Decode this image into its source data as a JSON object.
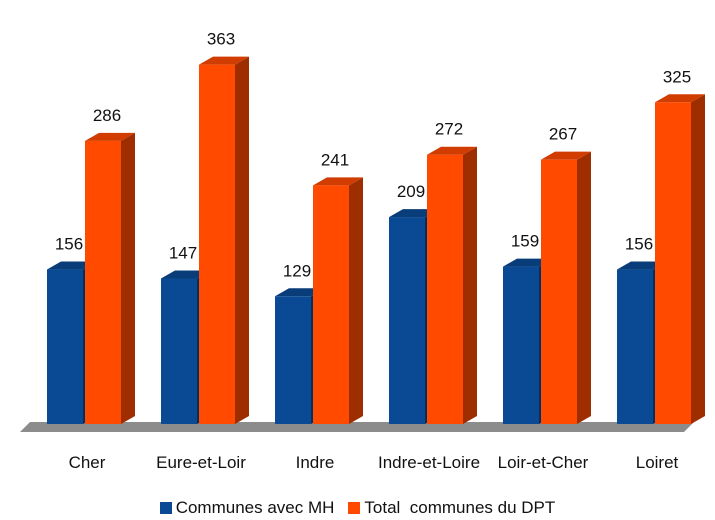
{
  "chart_data": {
    "type": "bar",
    "categories": [
      "Cher",
      "Eure-et-Loir",
      "Indre",
      "Indre-et-Loire",
      "Loir-et-Cher",
      "Loiret"
    ],
    "series": [
      {
        "name": "Communes avec MH",
        "values": [
          156,
          147,
          129,
          209,
          159,
          156
        ],
        "color": "#0a4a94"
      },
      {
        "name": "Total  communes du DPT",
        "values": [
          286,
          363,
          241,
          272,
          267,
          325
        ],
        "color": "#ff4a00"
      }
    ],
    "ylim": [
      0,
      400
    ],
    "grid": false,
    "legend": "bottom",
    "style": "3d-columns"
  }
}
